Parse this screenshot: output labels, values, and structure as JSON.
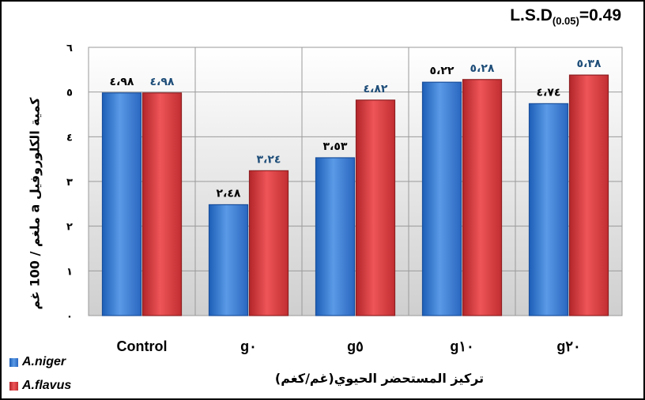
{
  "chart_data": {
    "type": "bar",
    "categories": [
      "Control",
      "g٠",
      "g٥",
      "g١٠",
      "g٢٠"
    ],
    "series": [
      {
        "name": "A.niger",
        "values": [
          4.98,
          2.48,
          3.53,
          5.22,
          4.74
        ],
        "labels": [
          "٤،٩٨",
          "٢،٤٨",
          "٣،٥٣",
          "٥،٢٢",
          "٤،٧٤"
        ],
        "color": "#3a7bd5",
        "label_color": "#000000"
      },
      {
        "name": "A.flavus",
        "values": [
          4.98,
          3.24,
          4.82,
          5.28,
          5.38
        ],
        "labels": [
          "٤،٩٨",
          "٣،٢٤",
          "٤،٨٢",
          "٥،٢٨",
          "٥،٣٨"
        ],
        "color": "#d9393c",
        "label_color": "#1f4e79"
      }
    ],
    "yticks": [
      "٠",
      "١",
      "٢",
      "٣",
      "٤",
      "٥",
      "٦"
    ],
    "ylim": [
      0,
      6
    ],
    "xlabel": "تركيز المستحضر الحيوي(غم/كغم)",
    "ylabel": "كمية الكلوروفيل a ملغم / 100 غم",
    "grid": true,
    "legend_position": "bottom-left"
  },
  "annotation": {
    "lsd_main": "L.S.D",
    "lsd_sub": "(0.05)",
    "lsd_value": "=0.49"
  }
}
